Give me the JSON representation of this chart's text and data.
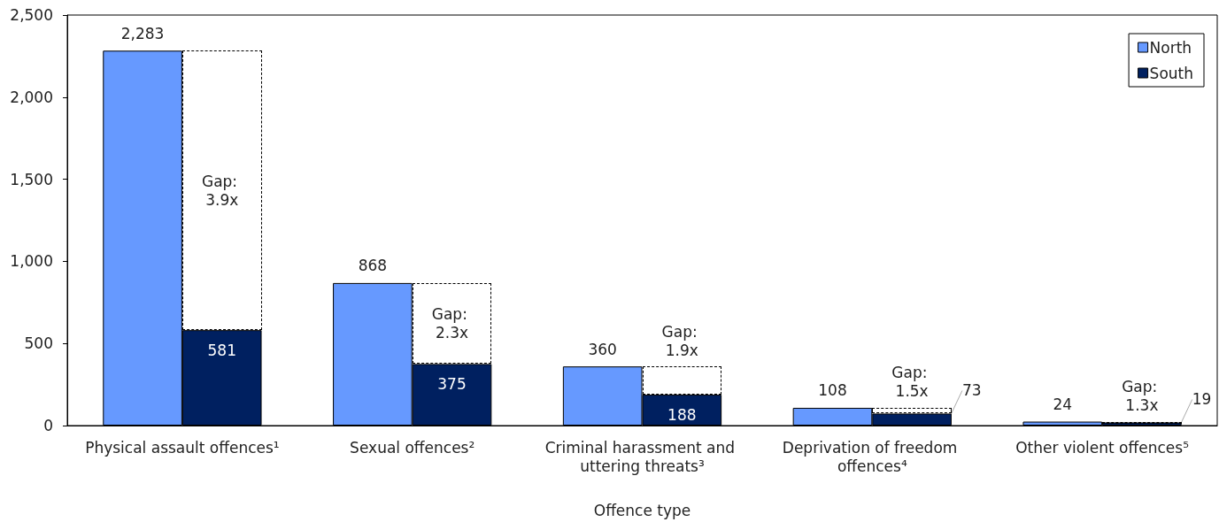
{
  "chart_data": {
    "type": "bar",
    "xlabel": "Offence type",
    "categories": [
      "Physical assault offences¹",
      "Sexual offences²",
      "Criminal harassment and uttering threats³",
      "Deprivation of freedom offences⁴",
      "Other violent offences⁵"
    ],
    "series": [
      {
        "name": "North",
        "color": "#6699ff",
        "values": [
          2283,
          868,
          360,
          108,
          24
        ],
        "value_labels": [
          "2,283",
          "868",
          "360",
          "108",
          "24"
        ]
      },
      {
        "name": "South",
        "color": "#002060",
        "values": [
          581,
          375,
          188,
          73,
          19
        ],
        "value_labels": [
          "581",
          "375",
          "188",
          "73",
          "19"
        ]
      }
    ],
    "ylim": [
      0,
      2500
    ],
    "yticks": [
      0,
      500,
      {
        "value": 1000,
        "label": "1,000"
      },
      {
        "value": 1500,
        "label": "1,500"
      },
      {
        "value": 2000,
        "label": "2,000"
      },
      {
        "value": 2500,
        "label": "2,500"
      }
    ],
    "grid": false,
    "legend": "top right",
    "annotations": [
      "Gap: 3.9x",
      "Gap: 2.3x",
      "Gap: 1.9x",
      "Gap: 1.5x",
      "Gap: 1.3x"
    ]
  }
}
